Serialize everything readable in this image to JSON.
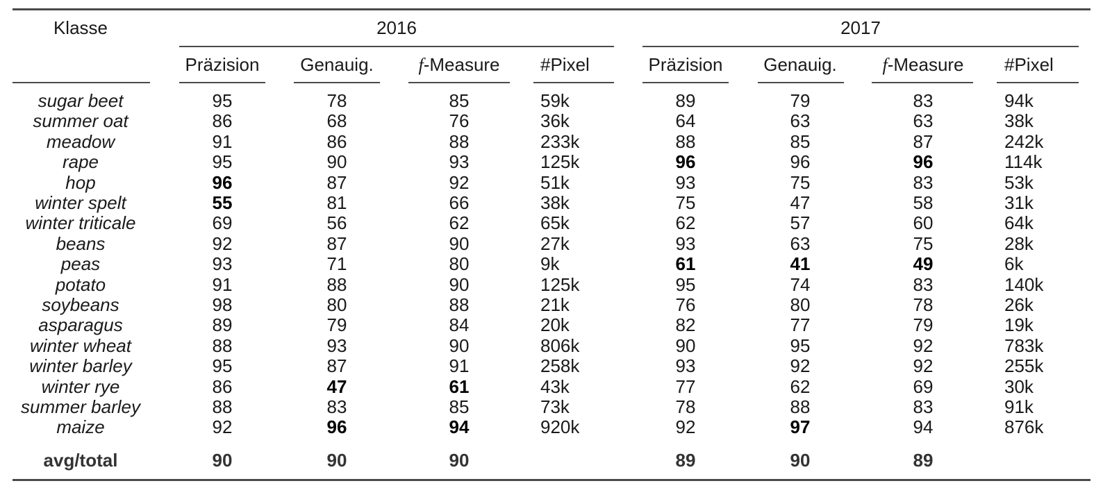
{
  "header": {
    "klasse": "Klasse",
    "years": [
      "2016",
      "2017"
    ],
    "metrics": [
      {
        "key": "praezision",
        "text": "Präzision"
      },
      {
        "key": "genauig",
        "text": "Genauig."
      },
      {
        "key": "fmeasure",
        "prefix": "f",
        "text": "-Measure"
      },
      {
        "key": "pixel",
        "text": "#Pixel"
      }
    ]
  },
  "rows": [
    {
      "klasse": "sugar beet",
      "y2016": [
        "95",
        "78",
        "85",
        "59k"
      ],
      "y2017": [
        "89",
        "79",
        "83",
        "94k"
      ]
    },
    {
      "klasse": "summer oat",
      "y2016": [
        "86",
        "68",
        "76",
        "36k"
      ],
      "y2017": [
        "64",
        "63",
        "63",
        "38k"
      ]
    },
    {
      "klasse": "meadow",
      "y2016": [
        "91",
        "86",
        "88",
        "233k"
      ],
      "y2017": [
        "88",
        "85",
        "87",
        "242k"
      ]
    },
    {
      "klasse": "rape",
      "y2016": [
        "95",
        "90",
        "93",
        "125k"
      ],
      "y2017": [
        "96",
        "96",
        "96",
        "114k"
      ]
    },
    {
      "klasse": "hop",
      "y2016": [
        "96",
        "87",
        "92",
        "51k"
      ],
      "y2017": [
        "93",
        "75",
        "83",
        "53k"
      ]
    },
    {
      "klasse": "winter spelt",
      "y2016": [
        "55",
        "81",
        "66",
        "38k"
      ],
      "y2017": [
        "75",
        "47",
        "58",
        "31k"
      ]
    },
    {
      "klasse": "winter triticale",
      "y2016": [
        "69",
        "56",
        "62",
        "65k"
      ],
      "y2017": [
        "62",
        "57",
        "60",
        "64k"
      ]
    },
    {
      "klasse": "beans",
      "y2016": [
        "92",
        "87",
        "90",
        "27k"
      ],
      "y2017": [
        "93",
        "63",
        "75",
        "28k"
      ]
    },
    {
      "klasse": "peas",
      "y2016": [
        "93",
        "71",
        "80",
        "9k"
      ],
      "y2017": [
        "61",
        "41",
        "49",
        "6k"
      ]
    },
    {
      "klasse": "potato",
      "y2016": [
        "91",
        "88",
        "90",
        "125k"
      ],
      "y2017": [
        "95",
        "74",
        "83",
        "140k"
      ]
    },
    {
      "klasse": "soybeans",
      "y2016": [
        "98",
        "80",
        "88",
        "21k"
      ],
      "y2017": [
        "76",
        "80",
        "78",
        "26k"
      ]
    },
    {
      "klasse": "asparagus",
      "y2016": [
        "89",
        "79",
        "84",
        "20k"
      ],
      "y2017": [
        "82",
        "77",
        "79",
        "19k"
      ]
    },
    {
      "klasse": "winter wheat",
      "y2016": [
        "88",
        "93",
        "90",
        "806k"
      ],
      "y2017": [
        "90",
        "95",
        "92",
        "783k"
      ]
    },
    {
      "klasse": "winter barley",
      "y2016": [
        "95",
        "87",
        "91",
        "258k"
      ],
      "y2017": [
        "93",
        "92",
        "92",
        "255k"
      ]
    },
    {
      "klasse": "winter rye",
      "y2016": [
        "86",
        "47",
        "61",
        "43k"
      ],
      "y2017": [
        "77",
        "62",
        "69",
        "30k"
      ]
    },
    {
      "klasse": "summer barley",
      "y2016": [
        "88",
        "83",
        "85",
        "73k"
      ],
      "y2017": [
        "78",
        "88",
        "83",
        "91k"
      ]
    },
    {
      "klasse": "maize",
      "y2016": [
        "92",
        "96",
        "94",
        "920k"
      ],
      "y2017": [
        "92",
        "97",
        "94",
        "876k"
      ]
    }
  ],
  "bold_cells": [
    [
      3,
      "y2017",
      0
    ],
    [
      3,
      "y2017",
      2
    ],
    [
      4,
      "y2016",
      0
    ],
    [
      5,
      "y2016",
      0
    ],
    [
      8,
      "y2017",
      0
    ],
    [
      8,
      "y2017",
      1
    ],
    [
      8,
      "y2017",
      2
    ],
    [
      14,
      "y2016",
      1
    ],
    [
      14,
      "y2016",
      2
    ],
    [
      16,
      "y2016",
      1
    ],
    [
      16,
      "y2016",
      2
    ],
    [
      16,
      "y2017",
      1
    ]
  ],
  "total": {
    "klasse": "avg/total",
    "y2016": [
      "90",
      "90",
      "90",
      ""
    ],
    "y2017": [
      "89",
      "90",
      "89",
      ""
    ]
  }
}
